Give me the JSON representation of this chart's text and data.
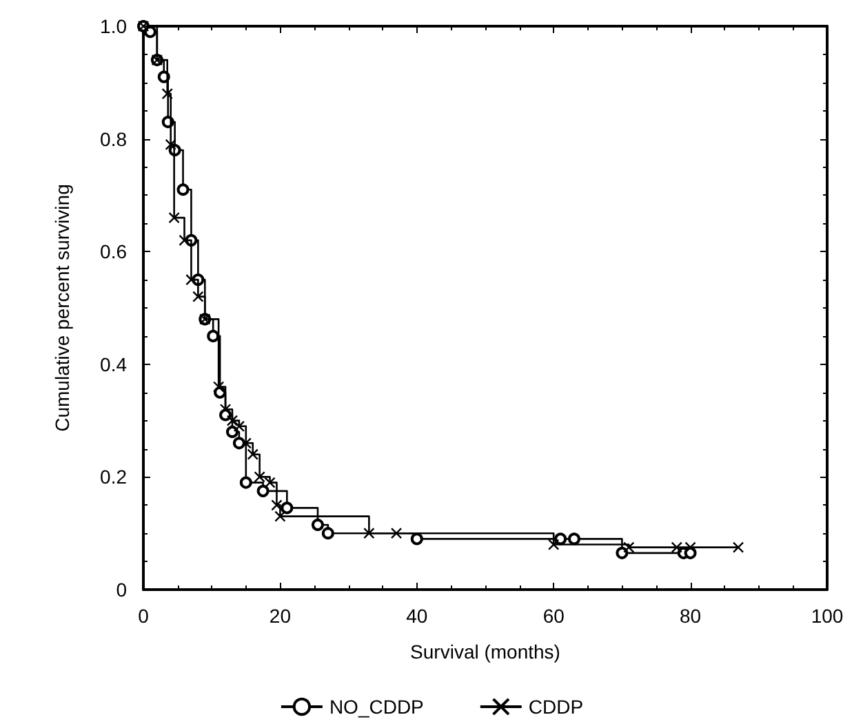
{
  "chart_data": {
    "type": "step",
    "xlabel": "Survival (months)",
    "ylabel": "Cumulative percent surviving",
    "xlim": [
      0,
      100
    ],
    "xticks": [
      0,
      20,
      40,
      60,
      80,
      100
    ],
    "ylim": [
      0,
      1
    ],
    "yticks": [
      0,
      0.2,
      0.4,
      0.6,
      0.8,
      {
        "value": 1,
        "label": "1.0"
      }
    ],
    "grid": false,
    "legend": "bottom",
    "line_style": "solid",
    "series": [
      {
        "name": "NO_CDDP",
        "color": "#000000",
        "marker": "circle",
        "x": [
          0,
          1,
          2,
          3,
          3.6,
          4.6,
          5.8,
          7,
          8,
          9,
          10.2,
          11.2,
          12,
          13,
          14,
          15,
          17.5,
          21,
          25.5,
          27,
          40,
          61,
          63,
          70,
          79,
          80
        ],
        "values": [
          1,
          0.99,
          0.94,
          0.91,
          0.83,
          0.78,
          0.71,
          0.62,
          0.55,
          0.48,
          0.45,
          0.35,
          0.31,
          0.28,
          0.26,
          0.19,
          0.175,
          0.145,
          0.115,
          0.1,
          0.09,
          0.09,
          0.09,
          0.065,
          0.065,
          0.065
        ]
      },
      {
        "name": "CDDP",
        "color": "#000000",
        "marker": "cross",
        "x": [
          0,
          2,
          3.5,
          4,
          4.5,
          6,
          7,
          8,
          9,
          11,
          12,
          13,
          14,
          15,
          16,
          17,
          18.5,
          19.5,
          20,
          33,
          37,
          60,
          71,
          78,
          80,
          87
        ],
        "values": [
          1,
          0.94,
          0.88,
          0.79,
          0.66,
          0.62,
          0.55,
          0.52,
          0.48,
          0.36,
          0.32,
          0.3,
          0.29,
          0.26,
          0.24,
          0.2,
          0.19,
          0.15,
          0.13,
          0.1,
          0.1,
          0.08,
          0.075,
          0.075,
          0.075,
          0.075
        ]
      }
    ]
  }
}
